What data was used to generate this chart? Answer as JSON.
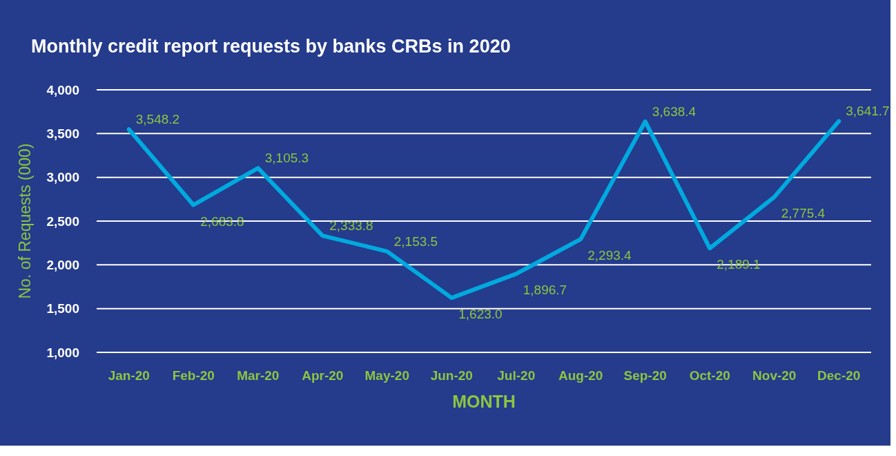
{
  "chart_data": {
    "type": "line",
    "title": "Monthly credit report requests by banks CRBs in 2020",
    "xlabel": "MONTH",
    "ylabel": "No. of Requests (000)",
    "categories": [
      "Jan-20",
      "Feb-20",
      "Mar-20",
      "Apr-20",
      "May-20",
      "Jun-20",
      "Jul-20",
      "Aug-20",
      "Sep-20",
      "Oct-20",
      "Nov-20",
      "Dec-20"
    ],
    "series": [
      {
        "color": "#00aadf",
        "values": [
          3548.2,
          2683.8,
          3105.3,
          2333.8,
          2153.5,
          1623.0,
          1896.7,
          2293.4,
          3638.4,
          2189.1,
          2775.4,
          3641.7
        ],
        "value_labels": [
          "3,548.2",
          "2,683.8",
          "3,105.3",
          "2,333.8",
          "2,153.5",
          "1,623.0",
          "1,896.7",
          "2,293.4",
          "3,638.4",
          "2,189.1",
          "2,775.4",
          "3,641.7"
        ]
      }
    ],
    "ylim": [
      1000,
      4000
    ],
    "yticks": [
      {
        "value": 1000,
        "label": "1,000"
      },
      {
        "value": 1500,
        "label": "1,500"
      },
      {
        "value": 2000,
        "label": "2,000"
      },
      {
        "value": 2500,
        "label": "2,500"
      },
      {
        "value": 3000,
        "label": "3,000"
      },
      {
        "value": 3500,
        "label": "3,500"
      },
      {
        "value": 4000,
        "label": "4,000"
      }
    ],
    "grid": "y",
    "line_style": "solid"
  }
}
